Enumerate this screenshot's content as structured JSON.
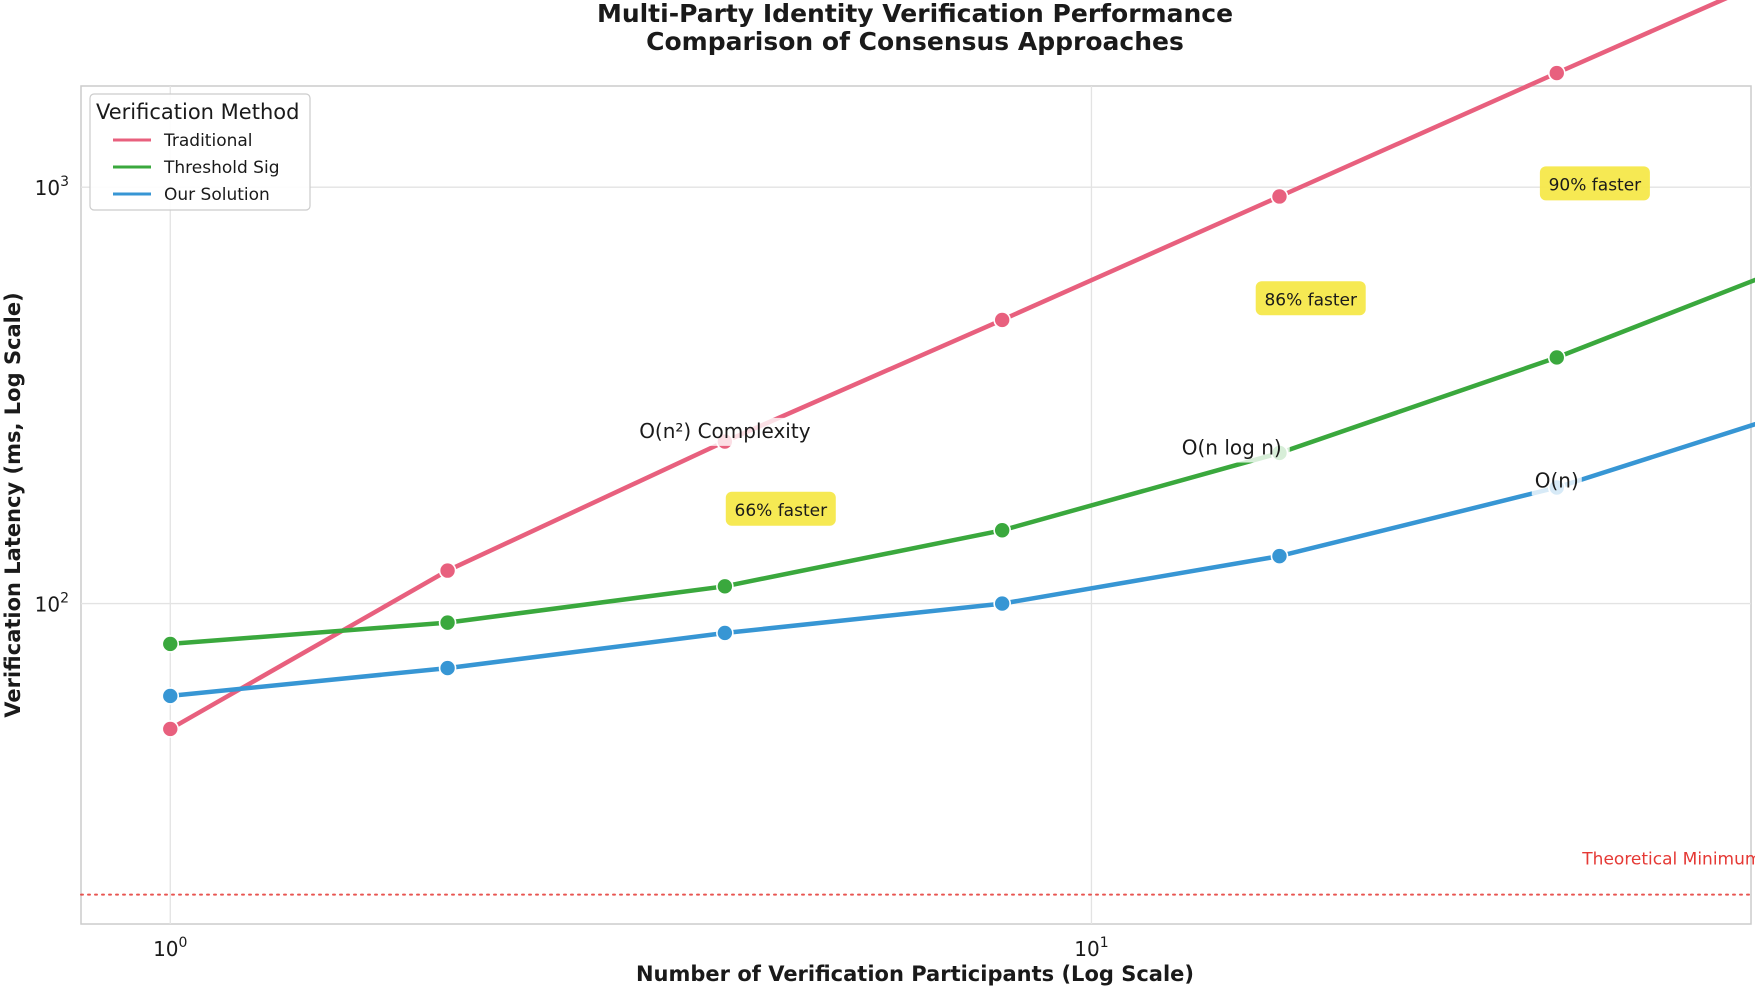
{
  "chart_data": {
    "type": "line",
    "title": "Multi-Party Identity Verification Performance",
    "subtitle": "Comparison of Consensus Approaches",
    "xlabel": "Number of Verification Participants (Log Scale)",
    "ylabel": "Verification Latency (ms, Log Scale)",
    "xscale": "log",
    "yscale": "log",
    "xlim": [
      0.8,
      52
    ],
    "ylim": [
      17,
      1750
    ],
    "x": [
      1,
      2,
      4,
      8,
      16,
      32,
      64
    ],
    "xticks": [
      {
        "base": "10",
        "exp": "0",
        "value": 1
      },
      {
        "base": "10",
        "exp": "1",
        "value": 10
      }
    ],
    "yticks": [
      {
        "base": "10",
        "exp": "2",
        "value": 100
      },
      {
        "base": "10",
        "exp": "3",
        "value": 1000
      }
    ],
    "grid": true,
    "legend": {
      "title": "Verification Method",
      "placement": "top-left"
    },
    "series": [
      {
        "name": "Traditional",
        "color": "#e8607e",
        "values": [
          50,
          120,
          245,
          480,
          950,
          1880,
          3700
        ]
      },
      {
        "name": "Threshold Sig",
        "color": "#3aa83d",
        "values": [
          80,
          90,
          110,
          150,
          230,
          390,
          710
        ]
      },
      {
        "name": "Our Solution",
        "color": "#3796d4",
        "values": [
          60,
          70,
          85,
          100,
          130,
          190,
          310
        ]
      }
    ],
    "annotations": [
      {
        "text": "O(n²) Complexity",
        "x": 4,
        "y": 250
      },
      {
        "text": "O(n log n)",
        "x": 14.2,
        "y": 228
      },
      {
        "text": "O(n)",
        "x": 32,
        "y": 190
      }
    ],
    "badges": [
      {
        "text": "66% faster",
        "x": 4.6,
        "y": 168
      },
      {
        "text": "86% faster",
        "x": 17.3,
        "y": 538
      },
      {
        "text": "90% faster",
        "x": 35.2,
        "y": 1016
      }
    ],
    "reference_line": {
      "label": "Theoretical Minimum Latency",
      "y": 20,
      "color": "#e53935"
    }
  }
}
